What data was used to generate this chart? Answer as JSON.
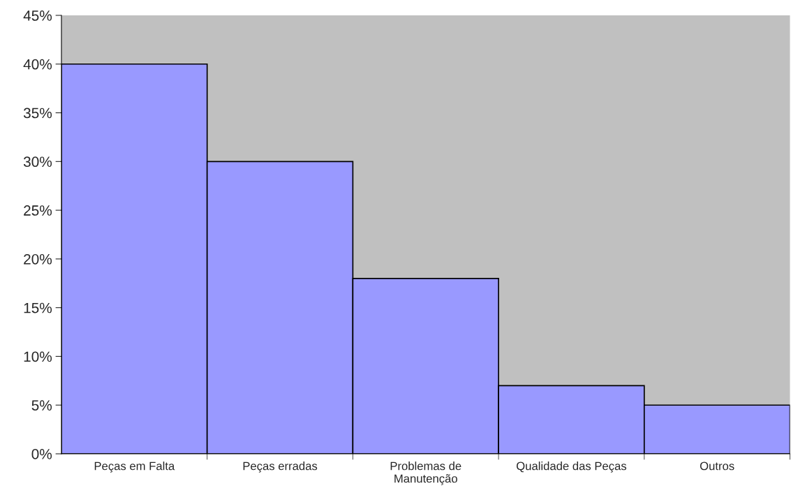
{
  "chart_data": {
    "type": "bar",
    "categories": [
      "Peças em Falta",
      "Peças erradas",
      "Problemas de\nManutenção",
      "Qualidade das Peças",
      "Outros"
    ],
    "values": [
      40,
      30,
      18,
      7,
      5
    ],
    "color": "#9999ff",
    "ylim": [
      0,
      45
    ],
    "yticks": [
      {
        "value": 0,
        "label": "0%"
      },
      {
        "value": 5,
        "label": "5%"
      },
      {
        "value": 10,
        "label": "10%"
      },
      {
        "value": 15,
        "label": "15%"
      },
      {
        "value": 20,
        "label": "20%"
      },
      {
        "value": 25,
        "label": "25%"
      },
      {
        "value": 30,
        "label": "30%"
      },
      {
        "value": 35,
        "label": "35%"
      },
      {
        "value": 40,
        "label": "40%"
      },
      {
        "value": 45,
        "label": "45%"
      }
    ],
    "grid": false,
    "legend": false
  }
}
